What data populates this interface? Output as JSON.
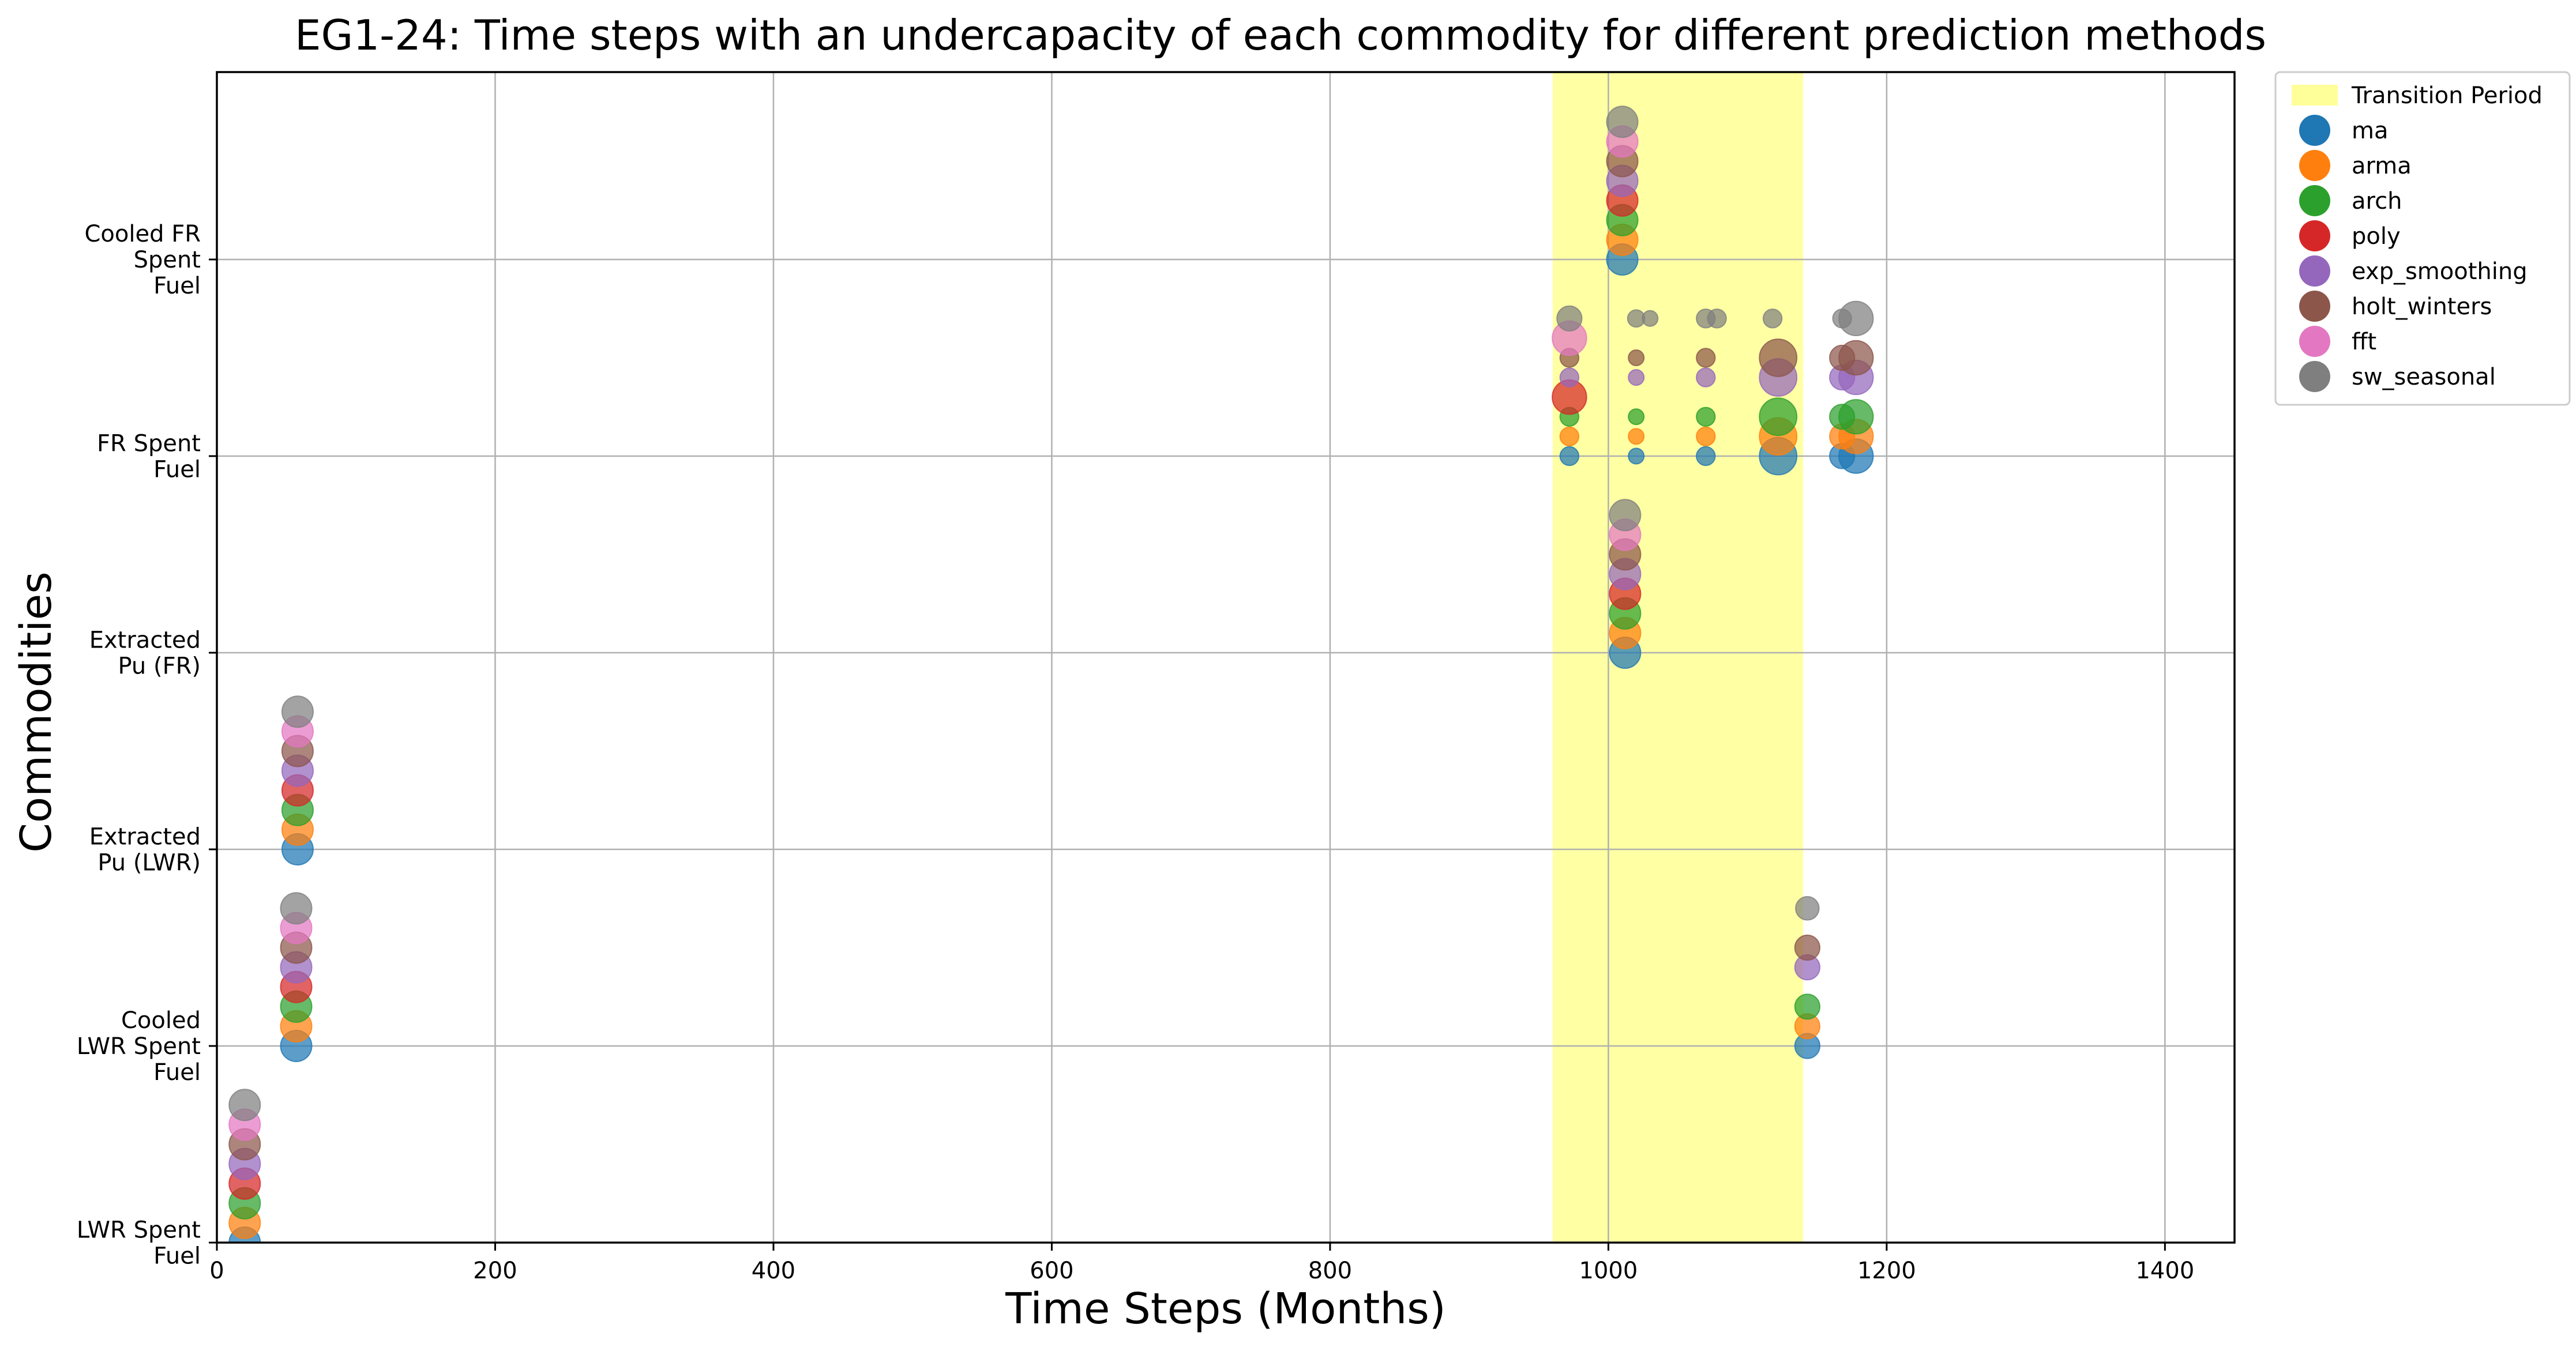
{
  "chart_data": {
    "type": "scatter",
    "title": "EG1-24: Time steps with an undercapacity of each commodity for different prediction methods",
    "xlabel": "Time Steps (Months)",
    "ylabel": "Commodities",
    "xlim": [
      0,
      1450
    ],
    "x_ticks": [
      0,
      200,
      400,
      600,
      800,
      1000,
      1200,
      1400
    ],
    "x_tick_labels": [
      "0",
      "200",
      "400",
      "600",
      "800",
      "1000",
      "1200",
      "1400"
    ],
    "categories": [
      [
        "LWR Spent",
        "Fuel"
      ],
      [
        "Cooled",
        "LWR Spent",
        "Fuel"
      ],
      [
        "Extracted",
        "Pu (LWR)"
      ],
      [
        "Extracted",
        "Pu (FR)"
      ],
      [
        "FR Spent",
        "Fuel"
      ],
      [
        "Cooled FR",
        "Spent",
        "Fuel"
      ]
    ],
    "grid": true,
    "legend": "outside-top-right",
    "transition_period": {
      "label": "Transition Period",
      "x_start": 960,
      "x_end": 1140,
      "color": "#ffff99"
    },
    "method_offset": 0.1,
    "series": [
      {
        "name": "ma",
        "color": "#1f77b4",
        "points": [
          [
            20,
            0,
            1
          ],
          [
            57,
            1,
            1
          ],
          [
            58,
            2,
            1
          ],
          [
            1010,
            5,
            1
          ],
          [
            1012,
            3,
            1
          ],
          [
            972,
            4,
            0.6
          ],
          [
            1020,
            4,
            0.5
          ],
          [
            1070,
            4,
            0.6
          ],
          [
            1122,
            4,
            1.2
          ],
          [
            1168,
            4,
            0.8
          ],
          [
            1178,
            4,
            1.1
          ],
          [
            1143,
            1,
            0.8
          ]
        ]
      },
      {
        "name": "arma",
        "color": "#ff7f0e",
        "points": [
          [
            20,
            0,
            1
          ],
          [
            57,
            1,
            1
          ],
          [
            58,
            2,
            1
          ],
          [
            1010,
            5,
            1
          ],
          [
            1012,
            3,
            1
          ],
          [
            972,
            4,
            0.6
          ],
          [
            1020,
            4,
            0.5
          ],
          [
            1070,
            4,
            0.6
          ],
          [
            1122,
            4,
            1.2
          ],
          [
            1168,
            4,
            0.8
          ],
          [
            1178,
            4,
            1.1
          ],
          [
            1143,
            1,
            0.8
          ]
        ]
      },
      {
        "name": "arch",
        "color": "#2ca02c",
        "points": [
          [
            20,
            0,
            1
          ],
          [
            57,
            1,
            1
          ],
          [
            58,
            2,
            1
          ],
          [
            1010,
            5,
            1
          ],
          [
            1012,
            3,
            1
          ],
          [
            972,
            4,
            0.6
          ],
          [
            1020,
            4,
            0.5
          ],
          [
            1070,
            4,
            0.6
          ],
          [
            1122,
            4,
            1.2
          ],
          [
            1168,
            4,
            0.8
          ],
          [
            1178,
            4,
            1.1
          ],
          [
            1143,
            1,
            0.8
          ]
        ]
      },
      {
        "name": "poly",
        "color": "#d62728",
        "points": [
          [
            20,
            0,
            1
          ],
          [
            57,
            1,
            1
          ],
          [
            58,
            2,
            1
          ],
          [
            1010,
            5,
            1
          ],
          [
            1012,
            3,
            1
          ],
          [
            972,
            4,
            1.1
          ]
        ]
      },
      {
        "name": "exp_smoothing",
        "color": "#9467bd",
        "points": [
          [
            20,
            0,
            1
          ],
          [
            57,
            1,
            1
          ],
          [
            58,
            2,
            1
          ],
          [
            1010,
            5,
            1
          ],
          [
            1012,
            3,
            1
          ],
          [
            972,
            4,
            0.6
          ],
          [
            1020,
            4,
            0.5
          ],
          [
            1070,
            4,
            0.6
          ],
          [
            1122,
            4,
            1.2
          ],
          [
            1168,
            4,
            0.8
          ],
          [
            1178,
            4,
            1.1
          ],
          [
            1143,
            1,
            0.8
          ]
        ]
      },
      {
        "name": "holt_winters",
        "color": "#8c564b",
        "points": [
          [
            20,
            0,
            1
          ],
          [
            57,
            1,
            1
          ],
          [
            58,
            2,
            1
          ],
          [
            1010,
            5,
            1
          ],
          [
            1012,
            3,
            1
          ],
          [
            972,
            4,
            0.6
          ],
          [
            1020,
            4,
            0.5
          ],
          [
            1070,
            4,
            0.6
          ],
          [
            1122,
            4,
            1.2
          ],
          [
            1168,
            4,
            0.8
          ],
          [
            1178,
            4,
            1.1
          ],
          [
            1143,
            1,
            0.8
          ]
        ]
      },
      {
        "name": "fft",
        "color": "#e377c2",
        "points": [
          [
            20,
            0,
            1
          ],
          [
            57,
            1,
            1
          ],
          [
            58,
            2,
            1
          ],
          [
            1010,
            5,
            1
          ],
          [
            1012,
            3,
            1
          ],
          [
            972,
            4,
            1.1
          ]
        ]
      },
      {
        "name": "sw_seasonal",
        "color": "#7f7f7f",
        "points": [
          [
            20,
            0,
            1
          ],
          [
            57,
            1,
            1
          ],
          [
            58,
            2,
            1
          ],
          [
            1010,
            5,
            1
          ],
          [
            1012,
            3,
            1
          ],
          [
            972,
            4,
            0.8
          ],
          [
            1020,
            4,
            0.55
          ],
          [
            1030,
            4,
            0.5
          ],
          [
            1070,
            4,
            0.6
          ],
          [
            1078,
            4,
            0.6
          ],
          [
            1118,
            4,
            0.6
          ],
          [
            1168,
            4,
            0.6
          ],
          [
            1178,
            4,
            1.1
          ],
          [
            1143,
            1,
            0.75
          ]
        ]
      }
    ]
  }
}
